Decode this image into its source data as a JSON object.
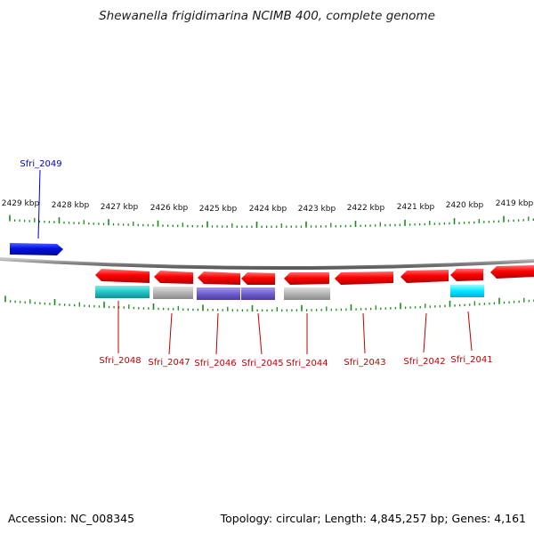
{
  "title": "Shewanella frigidimarina NCIMB 400, complete genome",
  "accession": "Accession: NC_008345",
  "summary": "Topology: circular; Length: 4,845,257 bp; Genes: 4,161",
  "scale_labels": [
    "2429 kbp",
    "2428 kbp",
    "2427 kbp",
    "2426 kbp",
    "2425 kbp",
    "2424 kbp",
    "2423 kbp",
    "2422 kbp",
    "2421 kbp",
    "2420 kbp",
    "2419 kbp"
  ],
  "colors": {
    "forward_gene": "#0010e0",
    "reverse_gene": "#ff0000",
    "backbone": "#888888",
    "tick": "#1a8a1a",
    "cyan_feature": "#20c8c8",
    "bright_cyan_feature": "#00e8ff",
    "gray_feature": "#b4b4b4",
    "purple_feature": "#7060d0"
  },
  "genes": [
    {
      "label": "Sfri_2049",
      "strand": "forward"
    },
    {
      "label": "Sfri_2048",
      "strand": "reverse"
    },
    {
      "label": "Sfri_2047",
      "strand": "reverse"
    },
    {
      "label": "Sfri_2046",
      "strand": "reverse"
    },
    {
      "label": "Sfri_2045",
      "strand": "reverse"
    },
    {
      "label": "Sfri_2044",
      "strand": "reverse"
    },
    {
      "label": "Sfri_2043",
      "strand": "reverse"
    },
    {
      "label": "Sfri_2042",
      "strand": "reverse"
    },
    {
      "label": "Sfri_2041",
      "strand": "reverse"
    }
  ]
}
